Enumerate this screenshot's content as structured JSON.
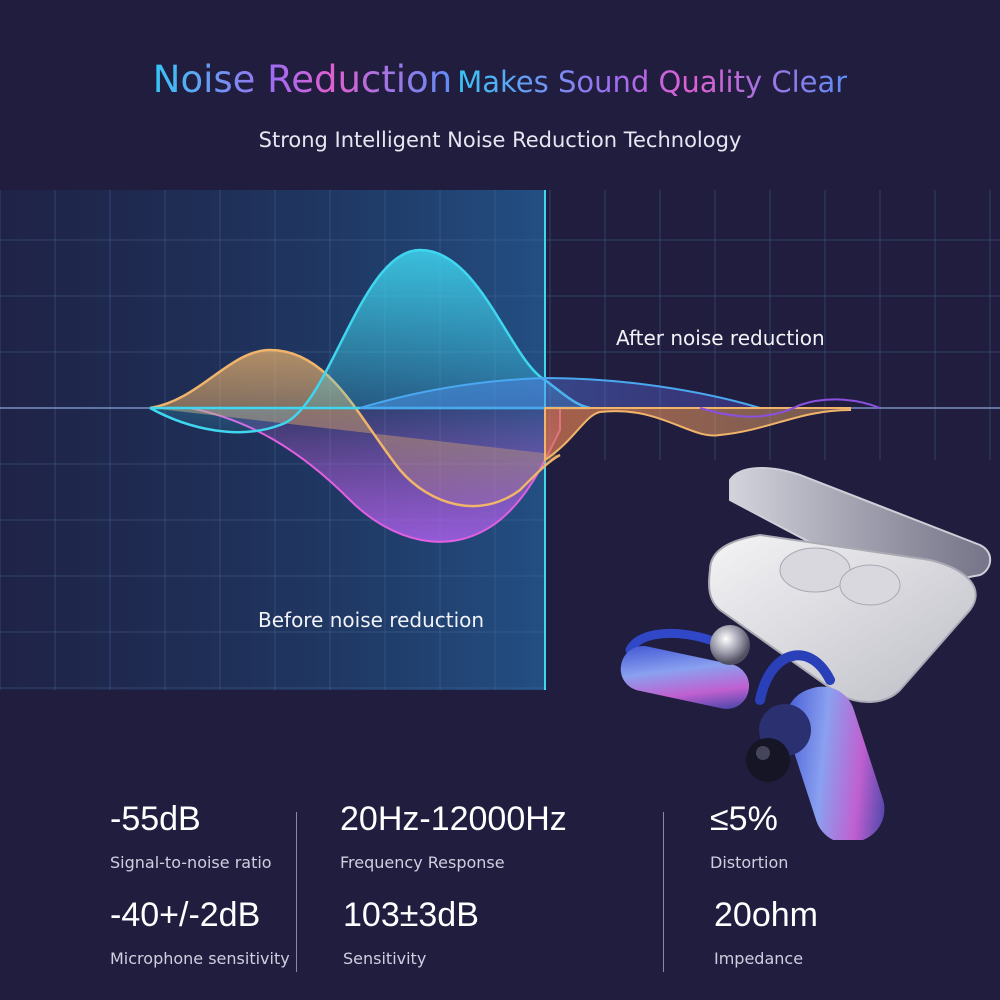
{
  "header": {
    "title_main": "Noise Reduction",
    "title_rest": "Makes Sound Quality Clear",
    "subtitle": "Strong Intelligent Noise Reduction Technology"
  },
  "chart_labels": {
    "after": "After noise reduction",
    "before": "Before noise reduction"
  },
  "colors": {
    "background": "#201d3f",
    "cyan": "#3fd6f0",
    "orange": "#f0b46a",
    "magenta": "#e060e0",
    "blue": "#5a7af0"
  },
  "specs": [
    {
      "value": "-55dB",
      "label": "Signal-to-noise ratio"
    },
    {
      "value": "20Hz-12000Hz",
      "label": "Frequency Response"
    },
    {
      "value": "≤5%",
      "label": "Distortion"
    },
    {
      "value": "-40+/-2dB",
      "label": "Microphone sensitivity"
    },
    {
      "value": "103±3dB",
      "label": "Sensitivity"
    },
    {
      "value": "20ohm",
      "label": "Impedance"
    }
  ]
}
